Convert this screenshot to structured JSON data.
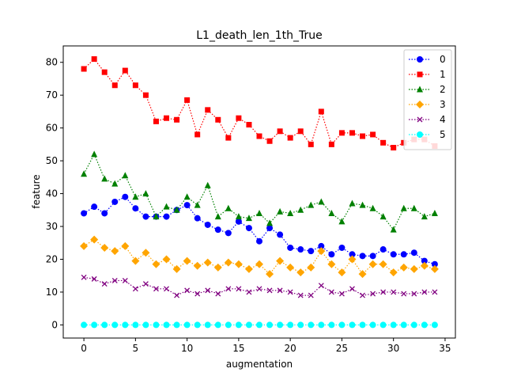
{
  "chart_data": {
    "type": "line",
    "title": "L1_death_len_1th_True",
    "xlabel": "augmentation",
    "ylabel": "feature",
    "xlim": [
      -2,
      36
    ],
    "ylim": [
      -4,
      85
    ],
    "xticks": [
      0,
      5,
      10,
      15,
      20,
      25,
      30,
      35
    ],
    "yticks": [
      0,
      10,
      20,
      30,
      40,
      50,
      60,
      70,
      80
    ],
    "grid": false,
    "legend_position": "top-right",
    "x": [
      0,
      1,
      2,
      3,
      4,
      5,
      6,
      7,
      8,
      9,
      10,
      11,
      12,
      13,
      14,
      15,
      16,
      17,
      18,
      19,
      20,
      21,
      22,
      23,
      24,
      25,
      26,
      27,
      28,
      29,
      30,
      31,
      32,
      33,
      34
    ],
    "series": [
      {
        "name": "0",
        "color": "#0000ff",
        "marker": "circle",
        "values": [
          34,
          36,
          34,
          37.5,
          39,
          35.5,
          33,
          33,
          33,
          35,
          36.5,
          32.5,
          30.5,
          29,
          28,
          31.5,
          29.5,
          25.5,
          29.5,
          27.5,
          23.5,
          23,
          22.5,
          24,
          21.5,
          23.5,
          21.5,
          21,
          21,
          23,
          21.5,
          21.5,
          22,
          19.5,
          18.5
        ]
      },
      {
        "name": "1",
        "color": "#ff0000",
        "marker": "square",
        "values": [
          78,
          81,
          77,
          73,
          77.5,
          73,
          70,
          62,
          63,
          62.5,
          68.5,
          58,
          65.5,
          62.5,
          57,
          63,
          61,
          57.5,
          56,
          59,
          57,
          59,
          55,
          65,
          55,
          58.5,
          58.5,
          57.5,
          58,
          55.5,
          54,
          55.5,
          56.5,
          56.5,
          54.5
        ]
      },
      {
        "name": "2",
        "color": "#008000",
        "marker": "triangle",
        "values": [
          46,
          52,
          44.5,
          43,
          45.5,
          39,
          40,
          33,
          36,
          35,
          39,
          36.5,
          42.5,
          33,
          35.5,
          33,
          32.5,
          34,
          31,
          34.5,
          34,
          35,
          36.5,
          37.5,
          34,
          31.5,
          37,
          36.5,
          35.5,
          33,
          29,
          35.5,
          35.5,
          33,
          34
        ]
      },
      {
        "name": "3",
        "color": "#ffa500",
        "marker": "diamond",
        "values": [
          24,
          26,
          23.5,
          22.5,
          24,
          19.5,
          22,
          18.5,
          20,
          17,
          19.5,
          18,
          19,
          17.5,
          19,
          18.5,
          17,
          18.5,
          15.5,
          19.5,
          17.5,
          16,
          17.5,
          22.5,
          18.5,
          16,
          20,
          15.5,
          18.5,
          18.5,
          16,
          17.5,
          17,
          18,
          17
        ]
      },
      {
        "name": "4",
        "color": "#800080",
        "marker": "x",
        "values": [
          14.5,
          14,
          12.5,
          13.5,
          13.5,
          11,
          12.5,
          11,
          11,
          9,
          10.5,
          9.5,
          10.5,
          9.5,
          11,
          11,
          10,
          11,
          10.5,
          10.5,
          10,
          9,
          9,
          12,
          10,
          9.5,
          11,
          9,
          9.5,
          10,
          10,
          9.5,
          9.5,
          10,
          10
        ]
      },
      {
        "name": "5",
        "color": "#00ffff",
        "marker": "circle",
        "values": [
          0,
          0,
          0,
          0,
          0,
          0,
          0,
          0,
          0,
          0,
          0,
          0,
          0,
          0,
          0,
          0,
          0,
          0,
          0,
          0,
          0,
          0,
          0,
          0,
          0,
          0,
          0,
          0,
          0,
          0,
          0,
          0,
          0,
          0,
          0
        ]
      }
    ]
  }
}
